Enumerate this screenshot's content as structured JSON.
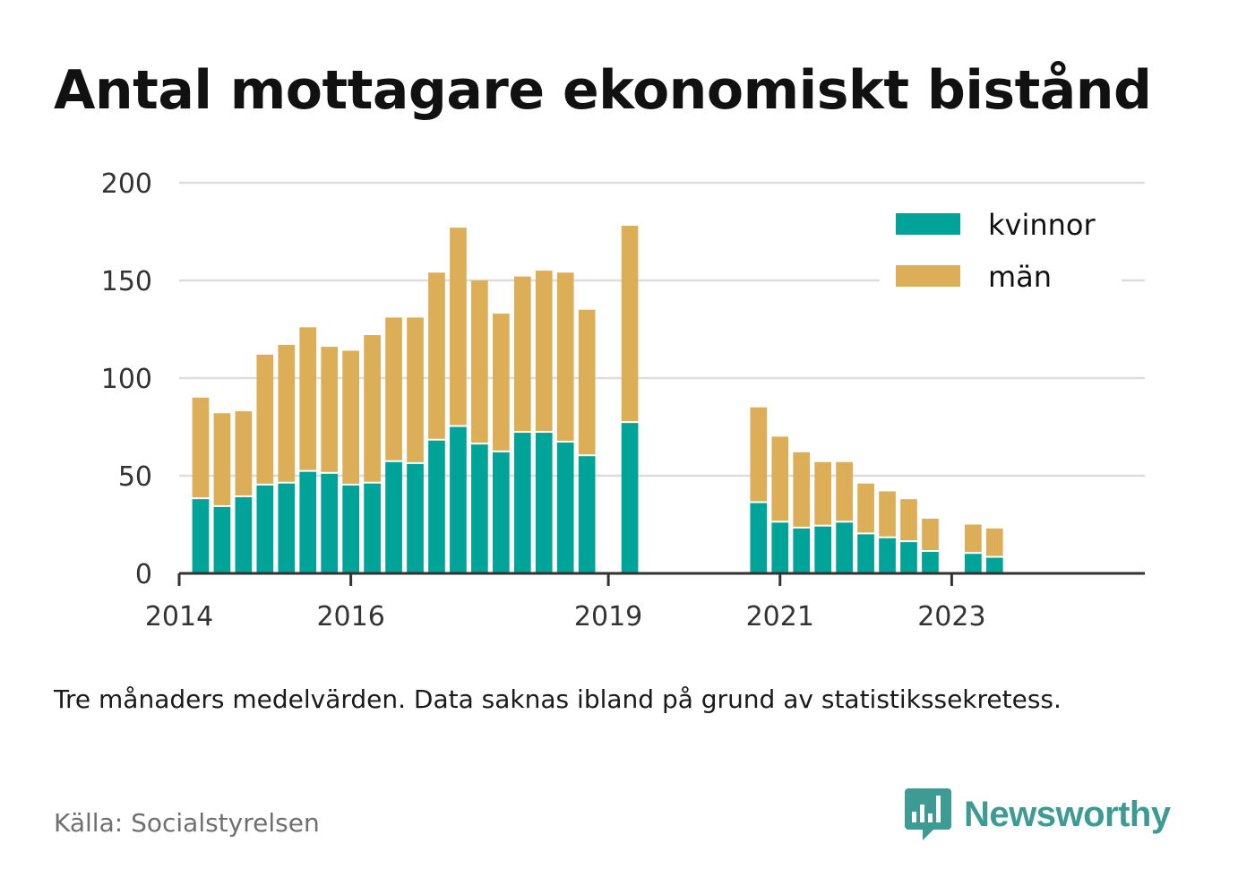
{
  "title": "Antal mottagare ekonomiskt bistånd",
  "note": "Tre månaders medelvärden. Data saknas ibland på grund av statistikssekretess.",
  "source": "Källa: Socialstyrelsen",
  "brand": "Newsworthy",
  "colors": {
    "kvinnor": "#00a398",
    "man": "#dcae58",
    "grid": "#dddddd",
    "axis": "#333333",
    "brand": "#3d9b93"
  },
  "chart_data": {
    "type": "bar",
    "stacked": true,
    "title": "Antal mottagare ekonomiskt bistånd",
    "ylim": [
      0,
      200
    ],
    "yticks": [
      0,
      50,
      100,
      150,
      200
    ],
    "xlim": [
      2014.0,
      2025.25
    ],
    "xticks": [
      {
        "value": 2014.0,
        "label": "2014"
      },
      {
        "value": 2016.0,
        "label": "2016"
      },
      {
        "value": 2019.0,
        "label": "2019"
      },
      {
        "value": 2021.0,
        "label": "2021"
      },
      {
        "value": 2023.0,
        "label": "2023"
      }
    ],
    "grid": true,
    "legend_position": "top-right",
    "x": [
      2014.25,
      2014.5,
      2014.75,
      2015.0,
      2015.25,
      2015.5,
      2015.75,
      2016.0,
      2016.25,
      2016.5,
      2016.75,
      2017.0,
      2017.25,
      2017.5,
      2017.75,
      2018.0,
      2018.25,
      2018.5,
      2018.75,
      2019.0,
      2019.25,
      2019.5,
      2019.75,
      2020.0,
      2020.25,
      2020.5,
      2020.75,
      2021.0,
      2021.25,
      2021.5,
      2021.75,
      2022.0,
      2022.25,
      2022.5,
      2022.75,
      2023.0,
      2023.25,
      2023.5
    ],
    "series": [
      {
        "name": "kvinnor",
        "values": [
          38,
          34,
          39,
          45,
          46,
          52,
          51,
          45,
          46,
          57,
          56,
          68,
          75,
          66,
          62,
          72,
          72,
          67,
          60,
          null,
          77,
          null,
          null,
          null,
          null,
          null,
          36,
          26,
          23,
          24,
          26,
          20,
          18,
          16,
          11,
          null,
          10,
          8
        ]
      },
      {
        "name": "män",
        "values": [
          52,
          48,
          44,
          67,
          71,
          74,
          65,
          69,
          76,
          74,
          75,
          86,
          102,
          84,
          71,
          80,
          83,
          87,
          75,
          null,
          101,
          null,
          null,
          null,
          null,
          null,
          49,
          44,
          39,
          33,
          31,
          26,
          24,
          22,
          17,
          null,
          15,
          15
        ]
      }
    ]
  }
}
